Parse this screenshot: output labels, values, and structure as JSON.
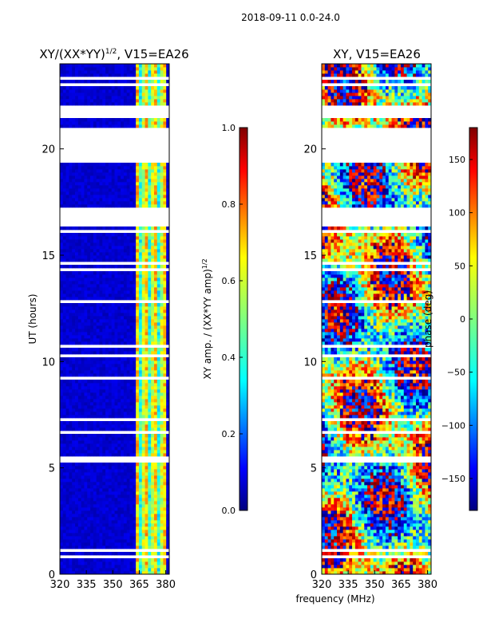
{
  "figure": {
    "suptitle": "2018-09-11 0.0-24.0",
    "xlabel": "frequency (MHz)"
  },
  "chart_data": [
    {
      "type": "heatmap",
      "title_main": "XY/(XX*YY)",
      "title_sup": "1/2",
      "title_rest": ", V15=EA26",
      "xlabel": "",
      "ylabel": "UT (hours)",
      "xlim": [
        320,
        382
      ],
      "ylim": [
        0,
        24
      ],
      "xticks": [
        320,
        335,
        350,
        365,
        380
      ],
      "yticks": [
        0,
        5,
        10,
        15,
        20
      ],
      "colorbar": {
        "label_main": "XY amp. / (XX*YY amp)",
        "label_sup": "1/2",
        "range": [
          0.0,
          1.0
        ],
        "ticks": [
          "0.0",
          "0.2",
          "0.4",
          "0.6",
          "0.8",
          "1.0"
        ],
        "colormap": "jet"
      },
      "structure": {
        "gap_hours": [
          [
            16.4,
            17.3
          ],
          [
            19.3,
            21.0
          ],
          [
            21.4,
            22.0
          ]
        ],
        "high_band_mhz": [
          363,
          381
        ],
        "background_value": 0.05,
        "band_value_range": [
          0.3,
          0.75
        ]
      }
    },
    {
      "type": "heatmap",
      "title": "XY, V15=EA26",
      "xlabel": "",
      "ylabel": "",
      "xlim": [
        320,
        382
      ],
      "ylim": [
        0,
        24
      ],
      "xticks": [
        320,
        335,
        350,
        365,
        380
      ],
      "yticks": [
        0,
        5,
        10,
        15,
        20
      ],
      "colorbar": {
        "label": "phase (deg)",
        "range": [
          -180,
          180
        ],
        "ticks": [
          "150",
          "100",
          "50",
          "0",
          "−50",
          "−100",
          "−150"
        ],
        "tick_values": [
          150,
          100,
          50,
          0,
          -50,
          -100,
          -150
        ],
        "colormap": "jet"
      },
      "structure": {
        "gap_hours": [
          [
            16.4,
            17.3
          ],
          [
            19.3,
            21.0
          ],
          [
            21.4,
            22.0
          ]
        ],
        "value_range": [
          -180,
          180
        ]
      }
    }
  ],
  "colors": {
    "jet": [
      "#00007f",
      "#0000ff",
      "#007fff",
      "#00ffff",
      "#7fff7f",
      "#ffff00",
      "#ff7f00",
      "#ff0000",
      "#7f0000"
    ]
  }
}
